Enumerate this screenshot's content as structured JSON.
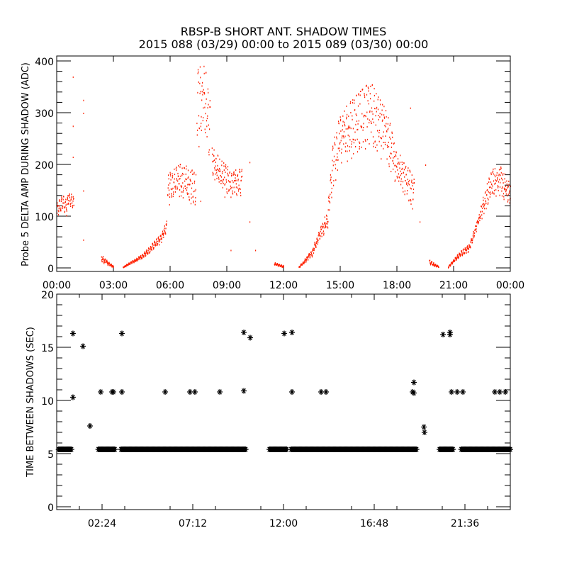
{
  "title": "RBSP-B SHORT ANT. SHADOW TIMES",
  "subtitle": "2015 088 (03/29) 00:00 to 2015 089 (03/30) 00:00",
  "colors": {
    "top_points": "#ff2000",
    "bottom_points": "#000000",
    "axes": "#000000"
  },
  "chart_data": [
    {
      "type": "scatter",
      "ylabel": "Probe 5 DELTA AMP DURING SHADOW (ADC)",
      "xlabel": "",
      "xlim": [
        0,
        24
      ],
      "ylim": [
        0,
        400
      ],
      "xticks": [
        0,
        3,
        6,
        9,
        12,
        15,
        18,
        21,
        24
      ],
      "xtick_labels": [
        "00:00",
        "03:00",
        "06:00",
        "09:00",
        "12:00",
        "15:00",
        "18:00",
        "21:00",
        "00:00"
      ],
      "yticks": [
        0,
        100,
        200,
        300,
        400
      ],
      "ytick_labels": [
        "0",
        "100",
        "200",
        "300",
        "400"
      ],
      "x_units": "hours",
      "envelope_note": "segments of [hour, low, high]",
      "segments": [
        [
          [
            0,
            95,
            125
          ],
          [
            0.3,
            105,
            140
          ],
          [
            0.5,
            100,
            130
          ],
          [
            0.6,
            120,
            150
          ],
          [
            0.9,
            105,
            135
          ]
        ],
        [
          [
            2.35,
            10,
            25
          ],
          [
            2.7,
            5,
            12
          ],
          [
            3.0,
            0,
            3
          ]
        ],
        [
          [
            3.5,
            0,
            2
          ],
          [
            4.0,
            8,
            14
          ],
          [
            4.5,
            18,
            25
          ],
          [
            5.0,
            30,
            45
          ],
          [
            5.5,
            45,
            65
          ],
          [
            5.8,
            70,
            90
          ]
        ],
        [
          [
            5.85,
            115,
            180
          ],
          [
            6.5,
            135,
            200
          ],
          [
            7.0,
            120,
            195
          ],
          [
            7.35,
            110,
            180
          ]
        ],
        [
          [
            7.4,
            200,
            380
          ],
          [
            7.8,
            230,
            400
          ],
          [
            8.1,
            200,
            320
          ]
        ],
        [
          [
            8.2,
            180,
            240
          ],
          [
            8.6,
            140,
            210
          ],
          [
            9.2,
            130,
            190
          ],
          [
            9.8,
            140,
            190
          ]
        ],
        [
          [
            11.5,
            5,
            10
          ],
          [
            12.0,
            0,
            4
          ]
        ],
        [
          [
            12.8,
            0,
            2
          ],
          [
            13.5,
            20,
            35
          ],
          [
            13.9,
            55,
            75
          ],
          [
            14.3,
            70,
            110
          ],
          [
            14.6,
            150,
            240
          ],
          [
            15.0,
            200,
            300
          ],
          [
            15.5,
            200,
            320
          ],
          [
            16.0,
            220,
            340
          ],
          [
            16.6,
            230,
            360
          ],
          [
            17.0,
            210,
            330
          ],
          [
            17.5,
            200,
            300
          ],
          [
            17.9,
            160,
            230
          ],
          [
            18.5,
            130,
            200
          ],
          [
            18.9,
            100,
            170
          ]
        ],
        [
          [
            19.7,
            5,
            15
          ],
          [
            20.2,
            0,
            3
          ]
        ],
        [
          [
            20.7,
            0,
            3
          ],
          [
            21.3,
            20,
            30
          ],
          [
            21.8,
            30,
            45
          ],
          [
            22.3,
            80,
            100
          ],
          [
            22.6,
            100,
            145
          ],
          [
            23.0,
            140,
            190
          ],
          [
            23.5,
            130,
            195
          ],
          [
            24,
            120,
            160
          ]
        ]
      ],
      "outliers": [
        [
          0.85,
          370
        ],
        [
          0.85,
          275
        ],
        [
          0.85,
          215
        ],
        [
          1.4,
          325
        ],
        [
          1.4,
          300
        ],
        [
          1.4,
          55
        ],
        [
          1.4,
          150
        ],
        [
          7.6,
          130
        ],
        [
          10.2,
          205
        ],
        [
          10.2,
          90
        ],
        [
          10.5,
          35
        ],
        [
          9.2,
          35
        ],
        [
          18.7,
          310
        ],
        [
          19.5,
          200
        ],
        [
          19.2,
          90
        ]
      ]
    },
    {
      "type": "scatter",
      "marker": "asterisk",
      "ylabel": "TIME BETWEEN SHADOWS (SEC)",
      "xlabel": "",
      "xlim": [
        0,
        24
      ],
      "ylim": [
        0,
        20
      ],
      "xticks": [
        2.4,
        7.2,
        12,
        16.8,
        21.6
      ],
      "xtick_labels": [
        "02:24",
        "07:12",
        "12:00",
        "16:48",
        "21:36"
      ],
      "yticks": [
        0,
        5,
        10,
        15,
        20
      ],
      "ytick_labels": [
        "0",
        "5",
        "10",
        "15",
        "20"
      ],
      "x_units": "hours",
      "baseline_value": 5.4,
      "baseline_ranges": [
        [
          0.1,
          0.8
        ],
        [
          2.2,
          3.1
        ],
        [
          3.4,
          10.0
        ],
        [
          11.25,
          12.2
        ],
        [
          12.4,
          19.05
        ],
        [
          20.25,
          21.0
        ],
        [
          21.4,
          24.0
        ]
      ],
      "outliers": [
        [
          0.86,
          16.3
        ],
        [
          0.86,
          10.3
        ],
        [
          1.39,
          15.1
        ],
        [
          1.76,
          7.6
        ],
        [
          2.33,
          10.8
        ],
        [
          2.93,
          10.8
        ],
        [
          3.0,
          10.8
        ],
        [
          3.45,
          16.3
        ],
        [
          3.45,
          10.8
        ],
        [
          5.74,
          10.8
        ],
        [
          7.05,
          10.8
        ],
        [
          7.31,
          10.8
        ],
        [
          8.63,
          10.8
        ],
        [
          9.9,
          16.4
        ],
        [
          9.9,
          10.9
        ],
        [
          10.24,
          15.9
        ],
        [
          12.04,
          16.3
        ],
        [
          12.45,
          16.4
        ],
        [
          12.45,
          10.8
        ],
        [
          13.99,
          10.8
        ],
        [
          14.25,
          10.8
        ],
        [
          18.83,
          10.8
        ],
        [
          18.9,
          11.7
        ],
        [
          18.9,
          10.7
        ],
        [
          19.43,
          7.5
        ],
        [
          19.46,
          7.0
        ],
        [
          20.44,
          16.2
        ],
        [
          20.81,
          16.4
        ],
        [
          20.81,
          16.2
        ],
        [
          20.89,
          10.8
        ],
        [
          21.19,
          10.8
        ],
        [
          21.49,
          10.8
        ],
        [
          23.18,
          10.8
        ],
        [
          23.44,
          10.8
        ],
        [
          23.74,
          10.8
        ]
      ]
    }
  ]
}
